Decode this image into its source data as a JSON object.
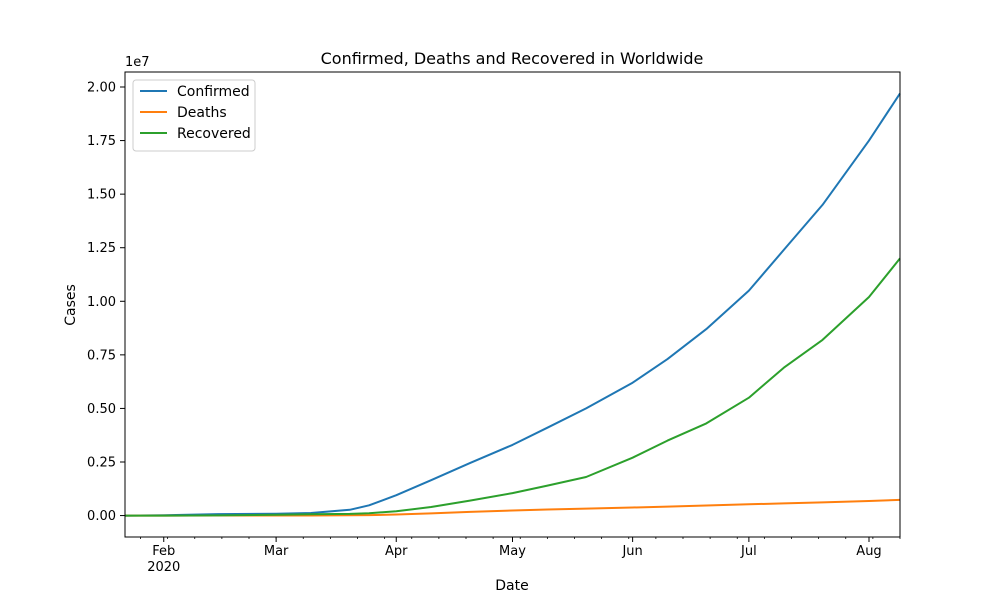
{
  "chart_data": {
    "type": "line",
    "title": "Confirmed, Deaths and Recovered in Worldwide",
    "xlabel": "Date",
    "ylabel": "Cases",
    "y_offset_label": "1e7",
    "xlim": [
      "2020-01-22",
      "2020-08-09"
    ],
    "ylim": [
      -1000000,
      20700000
    ],
    "x_ticks": [
      {
        "date": "2020-02-01",
        "label": "Feb",
        "sublabel": "2020"
      },
      {
        "date": "2020-03-01",
        "label": "Mar",
        "sublabel": ""
      },
      {
        "date": "2020-04-01",
        "label": "Apr",
        "sublabel": ""
      },
      {
        "date": "2020-05-01",
        "label": "May",
        "sublabel": ""
      },
      {
        "date": "2020-06-01",
        "label": "Jun",
        "sublabel": ""
      },
      {
        "date": "2020-07-01",
        "label": "Jul",
        "sublabel": ""
      },
      {
        "date": "2020-08-01",
        "label": "Aug",
        "sublabel": ""
      }
    ],
    "y_ticks": [
      {
        "value": 0,
        "label": "0.00"
      },
      {
        "value": 2500000,
        "label": "0.25"
      },
      {
        "value": 5000000,
        "label": "0.50"
      },
      {
        "value": 7500000,
        "label": "0.75"
      },
      {
        "value": 10000000,
        "label": "1.00"
      },
      {
        "value": 12500000,
        "label": "1.25"
      },
      {
        "value": 15000000,
        "label": "1.50"
      },
      {
        "value": 17500000,
        "label": "1.75"
      },
      {
        "value": 20000000,
        "label": "2.00"
      }
    ],
    "grid": false,
    "legend_position": "top-left",
    "x": [
      "2020-01-22",
      "2020-02-01",
      "2020-02-15",
      "2020-03-01",
      "2020-03-10",
      "2020-03-20",
      "2020-03-25",
      "2020-04-01",
      "2020-04-10",
      "2020-04-20",
      "2020-05-01",
      "2020-05-10",
      "2020-05-20",
      "2020-06-01",
      "2020-06-10",
      "2020-06-20",
      "2020-07-01",
      "2020-07-10",
      "2020-07-20",
      "2020-08-01",
      "2020-08-09"
    ],
    "series": [
      {
        "name": "Confirmed",
        "color": "#1f77b4",
        "values": [
          0,
          12000,
          69000,
          88000,
          118000,
          270000,
          480000,
          950000,
          1650000,
          2450000,
          3300000,
          4100000,
          5000000,
          6200000,
          7300000,
          8700000,
          10500000,
          12400000,
          14500000,
          17500000,
          19700000
        ]
      },
      {
        "name": "Deaths",
        "color": "#ff7f0e",
        "values": [
          0,
          260,
          1500,
          3000,
          4000,
          11000,
          21000,
          50000,
          100000,
          170000,
          235000,
          285000,
          325000,
          375000,
          420000,
          470000,
          525000,
          570000,
          615000,
          680000,
          730000
        ]
      },
      {
        "name": "Recovered",
        "color": "#2ca02c",
        "values": [
          0,
          300,
          8000,
          42000,
          60000,
          80000,
          110000,
          200000,
          400000,
          700000,
          1050000,
          1400000,
          1800000,
          2700000,
          3500000,
          4300000,
          5500000,
          6900000,
          8200000,
          10200000,
          12000000
        ]
      }
    ]
  }
}
